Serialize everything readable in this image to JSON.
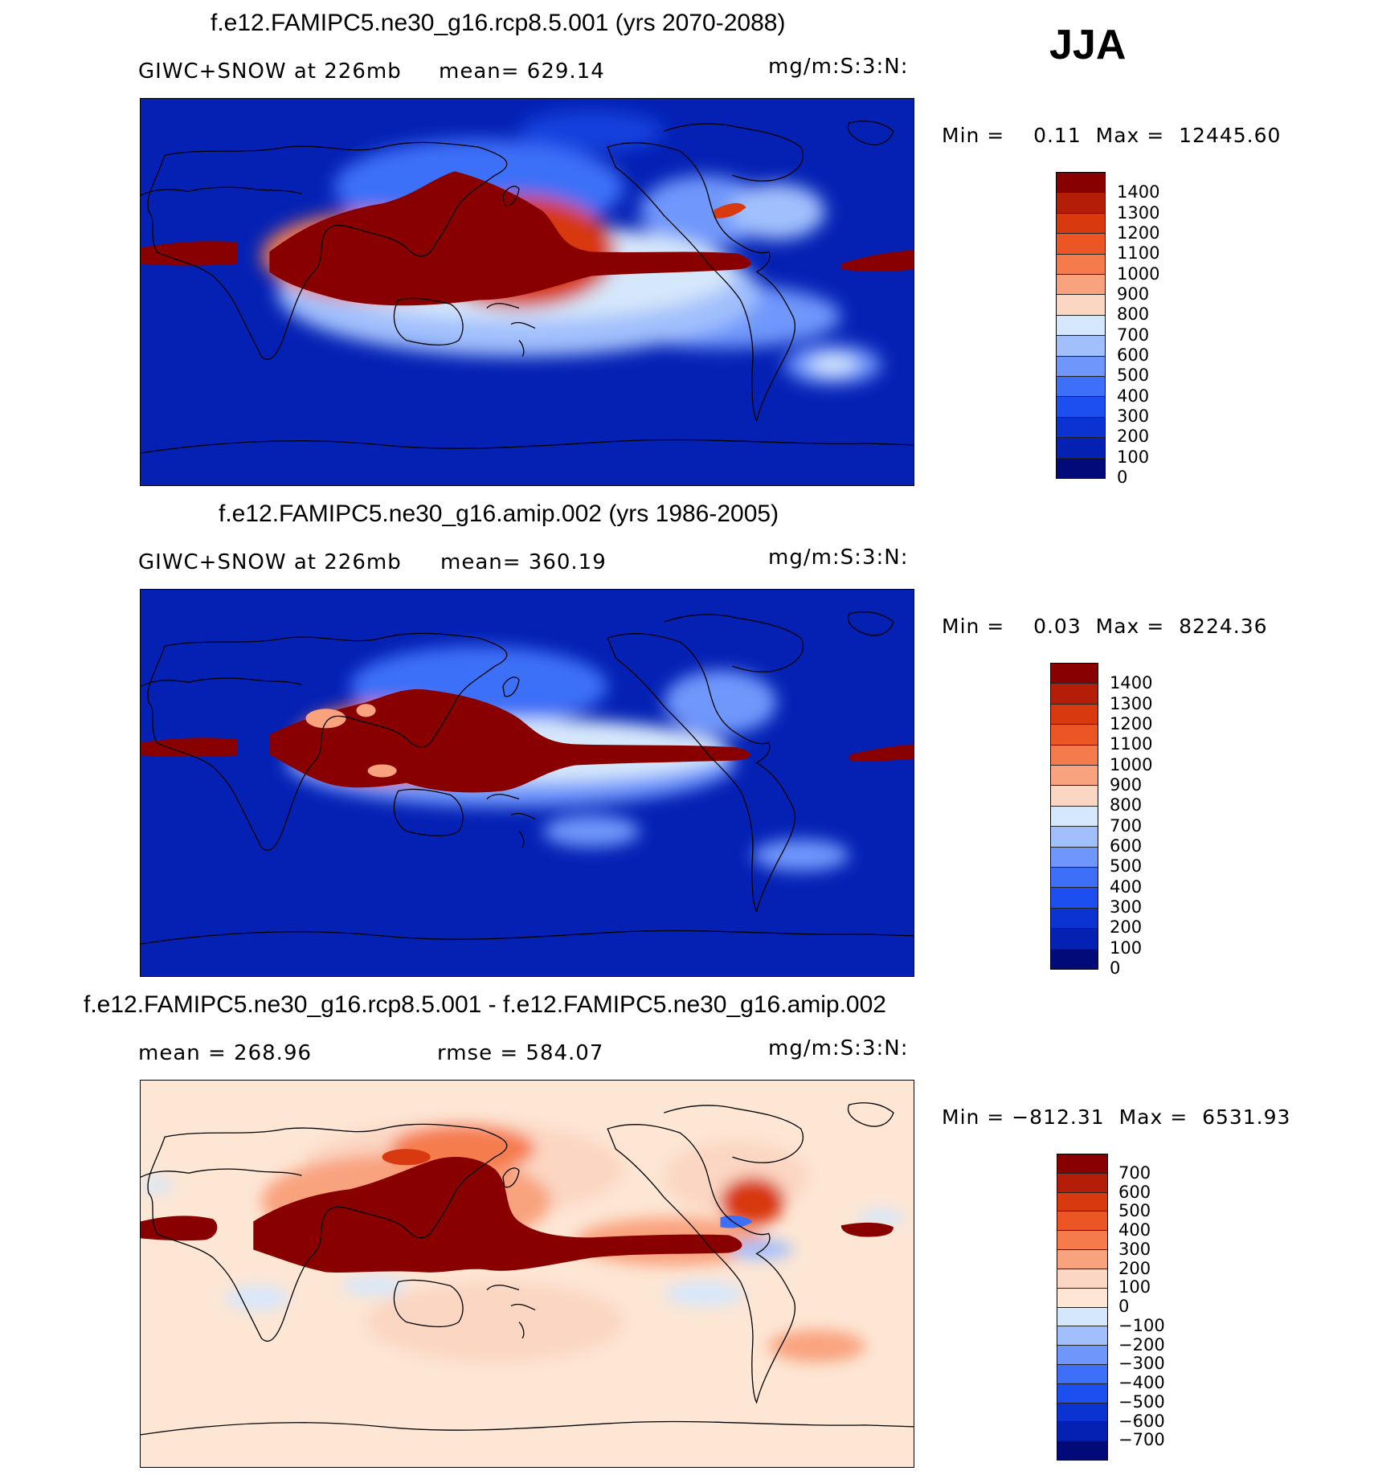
{
  "season": "JJA",
  "colors": {
    "seq": [
      "#000a78",
      "#0421b4",
      "#0a33d2",
      "#1d4ef0",
      "#3e6ff8",
      "#6f97fb",
      "#a0bffc",
      "#d5e7fb",
      "#fbd6c2",
      "#f9a27e",
      "#f57b4d",
      "#ec5625",
      "#d8390f",
      "#b41e08",
      "#890000"
    ],
    "div": [
      "#000a78",
      "#0421b4",
      "#0a33d2",
      "#1d4ef0",
      "#3e6ff8",
      "#6f97fb",
      "#a0bffc",
      "#d5e7fb",
      "#fde6d4",
      "#fbd6c2",
      "#f9a27e",
      "#f57b4d",
      "#ec5625",
      "#d8390f",
      "#b41e08",
      "#890000"
    ]
  },
  "panels": [
    {
      "title": "f.e12.FAMIPC5.ne30_g16.rcp8.5.001 (yrs 2070-2088)",
      "left_label": "GIWC+SNOW at 226mb",
      "center_label": "mean= 629.14",
      "units": "mg/m:S:3:N:",
      "min_label": "Min =",
      "min_value": "0.11",
      "max_label": "Max =",
      "max_value": "12445.60",
      "colorbar_ticks": [
        "1400",
        "1300",
        "1200",
        "1100",
        "1000",
        "900",
        "800",
        "700",
        "600",
        "500",
        "400",
        "300",
        "200",
        "100",
        "0"
      ]
    },
    {
      "title": "f.e12.FAMIPC5.ne30_g16.amip.002 (yrs 1986-2005)",
      "left_label": "GIWC+SNOW at 226mb",
      "center_label": "mean= 360.19",
      "units": "mg/m:S:3:N:",
      "min_label": "Min =",
      "min_value": "0.03",
      "max_label": "Max =",
      "max_value": "8224.36",
      "colorbar_ticks": [
        "1400",
        "1300",
        "1200",
        "1100",
        "1000",
        "900",
        "800",
        "700",
        "600",
        "500",
        "400",
        "300",
        "200",
        "100",
        "0"
      ]
    },
    {
      "title": "f.e12.FAMIPC5.ne30_g16.rcp8.5.001 - f.e12.FAMIPC5.ne30_g16.amip.002",
      "left_label": "mean = 268.96",
      "center_label": "rmse = 584.07",
      "units": "mg/m:S:3:N:",
      "min_label": "Min =",
      "min_value": "−812.31",
      "max_label": "Max =",
      "max_value": "6531.93",
      "colorbar_ticks": [
        "700",
        "600",
        "500",
        "400",
        "300",
        "200",
        "100",
        "0",
        "−100",
        "−200",
        "−300",
        "−400",
        "−500",
        "−600",
        "−700"
      ]
    }
  ]
}
